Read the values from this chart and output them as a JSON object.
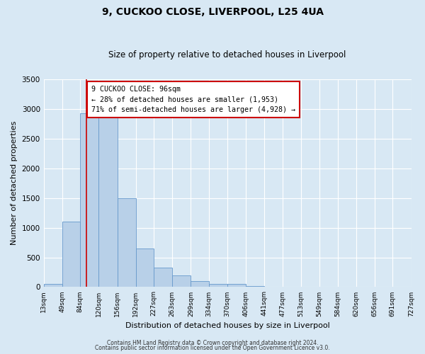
{
  "title": "9, CUCKOO CLOSE, LIVERPOOL, L25 4UA",
  "subtitle": "Size of property relative to detached houses in Liverpool",
  "xlabel": "Distribution of detached houses by size in Liverpool",
  "ylabel": "Number of detached properties",
  "bin_edges": [
    13,
    49,
    84,
    120,
    156,
    192,
    227,
    263,
    299,
    334,
    370,
    406,
    441,
    477,
    513,
    549,
    584,
    620,
    656,
    691,
    727
  ],
  "bar_heights": [
    55,
    1100,
    2930,
    2930,
    1500,
    650,
    330,
    200,
    100,
    55,
    50,
    20,
    10,
    3,
    3,
    3,
    3,
    3,
    3,
    3
  ],
  "bar_color": "#b8d0e8",
  "bar_edge_color": "#6699cc",
  "vline_x": 96,
  "vline_color": "#cc0000",
  "ylim": [
    0,
    3500
  ],
  "yticks": [
    0,
    500,
    1000,
    1500,
    2000,
    2500,
    3000,
    3500
  ],
  "annotation_box_text": "9 CUCKOO CLOSE: 96sqm\n← 28% of detached houses are smaller (1,953)\n71% of semi-detached houses are larger (4,928) →",
  "footer_line1": "Contains HM Land Registry data © Crown copyright and database right 2024.",
  "footer_line2": "Contains public sector information licensed under the Open Government Licence v3.0.",
  "background_color": "#d8e8f4",
  "plot_bg_color": "#d8e8f4",
  "grid_color": "#ffffff",
  "tick_labels": [
    "13sqm",
    "49sqm",
    "84sqm",
    "120sqm",
    "156sqm",
    "192sqm",
    "227sqm",
    "263sqm",
    "299sqm",
    "334sqm",
    "370sqm",
    "406sqm",
    "441sqm",
    "477sqm",
    "513sqm",
    "549sqm",
    "584sqm",
    "620sqm",
    "656sqm",
    "691sqm",
    "727sqm"
  ]
}
